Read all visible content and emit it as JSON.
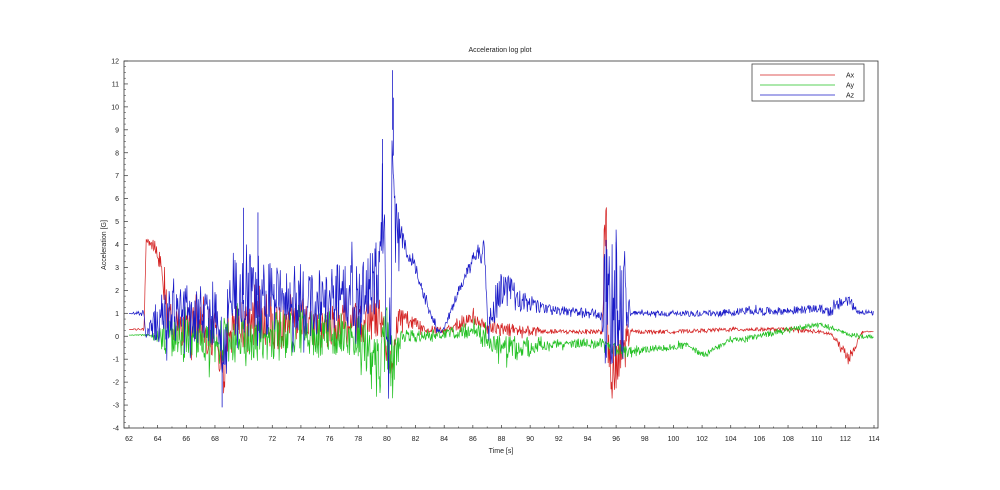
{
  "chart_data": {
    "type": "line",
    "title": "Acceleration log plot",
    "xlabel": "Time [s]",
    "ylabel": "Acceleration [G]",
    "xlim": [
      62,
      114
    ],
    "ylim": [
      -4,
      12
    ],
    "xticks": [
      "62",
      "64",
      "66",
      "68",
      "70",
      "72",
      "74",
      "76",
      "78",
      "80",
      "82",
      "84",
      "86",
      "88",
      "90",
      "92",
      "94",
      "96",
      "98",
      "100",
      "102",
      "104",
      "106",
      "108",
      "110",
      "112",
      "114"
    ],
    "yticks": [
      "-4",
      "-3",
      "-2",
      "-1",
      "0",
      "1",
      "2",
      "3",
      "4",
      "5",
      "6",
      "7",
      "8",
      "9",
      "10",
      "11",
      "12"
    ],
    "grid": false,
    "legend_position": "top-right",
    "series": [
      {
        "name": "Ax",
        "color": "#d42020",
        "points": [
          [
            62,
            0.3
          ],
          [
            63.05,
            0.3
          ],
          [
            63.2,
            4.2
          ],
          [
            63.6,
            4.0
          ],
          [
            64.2,
            3.4
          ],
          [
            64.6,
            1.4
          ],
          [
            65,
            0.5
          ],
          [
            66,
            0.4
          ],
          [
            67,
            0.3
          ],
          [
            68,
            0.2
          ],
          [
            68.6,
            -1.8
          ],
          [
            69,
            0.3
          ],
          [
            70,
            0.5
          ],
          [
            71,
            0.6
          ],
          [
            72,
            0.4
          ],
          [
            74,
            0.5
          ],
          [
            76,
            0.4
          ],
          [
            78,
            0.6
          ],
          [
            79.5,
            0.8
          ],
          [
            80.3,
            -1.4
          ],
          [
            80.8,
            0.9
          ],
          [
            81.5,
            0.7
          ],
          [
            82.5,
            0.4
          ],
          [
            84,
            0.2
          ],
          [
            85,
            0.5
          ],
          [
            86,
            0.8
          ],
          [
            87,
            0.4
          ],
          [
            88,
            0.3
          ],
          [
            90,
            0.2
          ],
          [
            92,
            0.2
          ],
          [
            95,
            0.2
          ],
          [
            95.3,
            4.8
          ],
          [
            95.5,
            -1.8
          ],
          [
            96,
            -1.6
          ],
          [
            96.5,
            -0.5
          ],
          [
            97,
            0.2
          ],
          [
            100,
            0.2
          ],
          [
            104,
            0.3
          ],
          [
            108,
            0.3
          ],
          [
            110,
            0.2
          ],
          [
            111,
            0.1
          ],
          [
            111.8,
            -0.6
          ],
          [
            112.2,
            -1.0
          ],
          [
            112.8,
            -0.3
          ],
          [
            113.2,
            0.2
          ],
          [
            114,
            0.2
          ]
        ],
        "noise": [
          [
            62,
            0
          ],
          [
            63.2,
            0.1
          ],
          [
            64.8,
            0.8
          ],
          [
            68,
            1.1
          ],
          [
            72,
            1.0
          ],
          [
            79,
            0.9
          ],
          [
            80.5,
            0.6
          ],
          [
            82,
            0.25
          ],
          [
            84,
            0.15
          ],
          [
            86,
            0.3
          ],
          [
            89,
            0.3
          ],
          [
            91,
            0.1
          ],
          [
            95,
            0.12
          ],
          [
            95.2,
            1.6
          ],
          [
            96.6,
            1.4
          ],
          [
            97,
            0.08
          ],
          [
            111,
            0.08
          ],
          [
            112,
            0.3
          ],
          [
            113.2,
            0.05
          ],
          [
            114,
            0
          ]
        ]
      },
      {
        "name": "Ay",
        "color": "#22c022",
        "points": [
          [
            62,
            0.05
          ],
          [
            63.5,
            0.05
          ],
          [
            64,
            0
          ],
          [
            66,
            -0.1
          ],
          [
            68,
            -0.2
          ],
          [
            70,
            -0.1
          ],
          [
            72,
            0
          ],
          [
            74,
            0.1
          ],
          [
            76,
            0.1
          ],
          [
            78,
            0
          ],
          [
            79.5,
            -1.5
          ],
          [
            80,
            0.2
          ],
          [
            80.4,
            -1.5
          ],
          [
            81,
            0
          ],
          [
            82,
            0
          ],
          [
            84,
            0.1
          ],
          [
            86,
            0.3
          ],
          [
            87,
            -0.2
          ],
          [
            88,
            -0.5
          ],
          [
            90,
            -0.5
          ],
          [
            92,
            -0.3
          ],
          [
            94,
            -0.3
          ],
          [
            95,
            -0.3
          ],
          [
            96,
            -0.6
          ],
          [
            97,
            -0.7
          ],
          [
            99,
            -0.5
          ],
          [
            101,
            -0.4
          ],
          [
            102,
            -0.8
          ],
          [
            103,
            -0.5
          ],
          [
            104,
            -0.2
          ],
          [
            106,
            0
          ],
          [
            108,
            0.3
          ],
          [
            110,
            0.5
          ],
          [
            111,
            0.4
          ],
          [
            112,
            0.1
          ],
          [
            113,
            0
          ],
          [
            114,
            0
          ]
        ],
        "noise": [
          [
            62,
            0
          ],
          [
            63.5,
            0.05
          ],
          [
            64.5,
            0.8
          ],
          [
            68,
            1.0
          ],
          [
            72,
            1.1
          ],
          [
            78,
            1.0
          ],
          [
            79.6,
            1.5
          ],
          [
            80.4,
            1.5
          ],
          [
            81,
            0.3
          ],
          [
            84,
            0.2
          ],
          [
            86,
            0.4
          ],
          [
            89,
            0.6
          ],
          [
            91,
            0.2
          ],
          [
            95,
            0.2
          ],
          [
            96.5,
            0.3
          ],
          [
            98,
            0.15
          ],
          [
            114,
            0.1
          ]
        ]
      },
      {
        "name": "Az",
        "color": "#1a1ac8",
        "points": [
          [
            62,
            1.0
          ],
          [
            63.05,
            1.0
          ],
          [
            63.2,
            0
          ],
          [
            64,
            0.8
          ],
          [
            66,
            1.0
          ],
          [
            68,
            1.0
          ],
          [
            68.6,
            -1.2
          ],
          [
            69,
            1.2
          ],
          [
            70,
            1.8
          ],
          [
            71,
            1.8
          ],
          [
            72,
            1.5
          ],
          [
            74,
            1.6
          ],
          [
            76,
            1.5
          ],
          [
            78,
            1.8
          ],
          [
            79.5,
            2.5
          ],
          [
            79.7,
            5.5
          ],
          [
            80,
            0
          ],
          [
            80.2,
            -1.5
          ],
          [
            80.4,
            9.0
          ],
          [
            80.6,
            4.5
          ],
          [
            81,
            4.2
          ],
          [
            82,
            3.0
          ],
          [
            82.7,
            1.5
          ],
          [
            83.5,
            0.3
          ],
          [
            84,
            0.3
          ],
          [
            85,
            2.0
          ],
          [
            86,
            3.3
          ],
          [
            86.8,
            3.7
          ],
          [
            87.1,
            0.2
          ],
          [
            88,
            2.2
          ],
          [
            89,
            1.7
          ],
          [
            90,
            1.4
          ],
          [
            91,
            1.2
          ],
          [
            92,
            1.1
          ],
          [
            94,
            1.0
          ],
          [
            95,
            0.9
          ],
          [
            95.3,
            1.5
          ],
          [
            96,
            1.2
          ],
          [
            96.5,
            1.5
          ],
          [
            97,
            1.0
          ],
          [
            100,
            1.0
          ],
          [
            103,
            1.0
          ],
          [
            105,
            1.1
          ],
          [
            108,
            1.1
          ],
          [
            110,
            1.2
          ],
          [
            111,
            1.1
          ],
          [
            111.8,
            1.5
          ],
          [
            112.2,
            1.6
          ],
          [
            112.8,
            1.1
          ],
          [
            114,
            1.0
          ]
        ],
        "noise": [
          [
            62,
            0
          ],
          [
            63.3,
            0.2
          ],
          [
            64,
            1.1
          ],
          [
            68,
            1.4
          ],
          [
            70,
            2.3
          ],
          [
            72,
            1.6
          ],
          [
            79,
            1.6
          ],
          [
            79.8,
            2.5
          ],
          [
            80.6,
            1.5
          ],
          [
            81.2,
            0.35
          ],
          [
            84,
            0.15
          ],
          [
            86.5,
            0.4
          ],
          [
            87.5,
            0.9
          ],
          [
            89,
            0.6
          ],
          [
            91,
            0.2
          ],
          [
            95,
            0.25
          ],
          [
            95.2,
            2.8
          ],
          [
            96.6,
            2.6
          ],
          [
            97,
            0.12
          ],
          [
            110,
            0.18
          ],
          [
            112,
            0.3
          ],
          [
            113,
            0.12
          ],
          [
            114,
            0.1
          ]
        ]
      }
    ]
  }
}
